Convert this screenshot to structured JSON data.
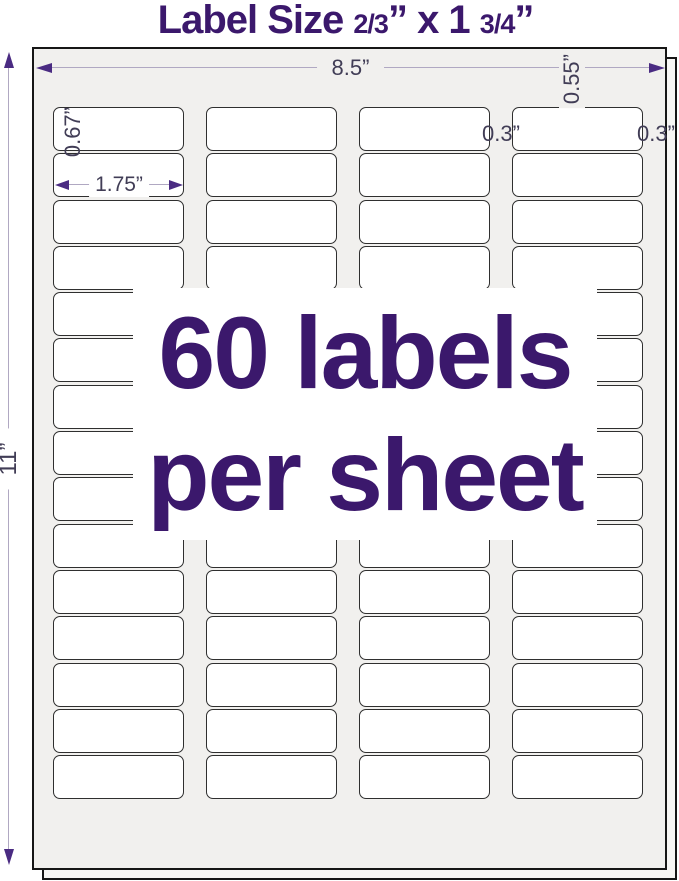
{
  "title": {
    "prefix": "Label Size ",
    "fraction1": "2/3",
    "mid": "” x 1 ",
    "fraction2": "3/4",
    "suffix": "”"
  },
  "sheet": {
    "columns": 4,
    "rows": 15,
    "total_labels": 60
  },
  "overlay": {
    "line1": "60 labels",
    "line2": "per sheet"
  },
  "dimensions": {
    "sheet_width": "8.5”",
    "sheet_height": "11”",
    "top_margin": "0.55”",
    "label_height": "0.67”",
    "label_width": "1.75”",
    "column_gap": "0.3”",
    "side_margin": "0.3”"
  },
  "colors": {
    "accent_purple": "#3b186c",
    "dimension_text": "#413d56",
    "arrowhead_purple": "#4a2b82",
    "dim_line": "#b0a8c2",
    "sheet_fill": "#f1f0ee",
    "label_fill": "#ffffff",
    "label_border": "#2f2f2f"
  }
}
